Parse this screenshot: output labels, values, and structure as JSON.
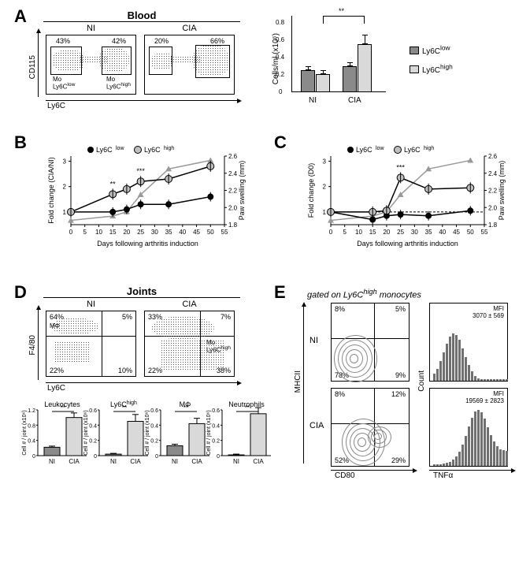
{
  "panelA": {
    "label": "A",
    "title": "Blood",
    "plots": [
      {
        "cond": "NI",
        "left_pct": "43%",
        "right_pct": "42%",
        "left_label": "Mo\nLy6Clow",
        "right_label": "Mo\nLy6Chigh"
      },
      {
        "cond": "CIA",
        "left_pct": "20%",
        "right_pct": "66%"
      }
    ],
    "y_axis": "CD115",
    "x_axis": "Ly6C",
    "bar_chart": {
      "y_label": "Cells/ml (x10⁶)",
      "y_ticks": [
        "0",
        "0.2",
        "0.4",
        "0.6",
        "0.8"
      ],
      "ylim": [
        0,
        0.8
      ],
      "sig": "**",
      "groups": [
        "NI",
        "CIA"
      ],
      "series": [
        {
          "name": "Ly6Clow",
          "color": "#8a8a8a",
          "values": [
            0.24,
            0.28
          ],
          "err": [
            0.04,
            0.04
          ]
        },
        {
          "name": "Ly6Chigh",
          "color": "#d9d9d9",
          "values": [
            0.2,
            0.52
          ],
          "err": [
            0.04,
            0.1
          ]
        }
      ],
      "legend_colors": {
        "low": "#8a8a8a",
        "high": "#d9d9d9"
      }
    }
  },
  "panelB": {
    "label": "B",
    "legend": {
      "low": "Ly6Clow",
      "high": "Ly6Chigh"
    },
    "y1_label": "Fold change (CIA/NI)",
    "y2_label": "Paw swelling (mm)",
    "x_label": "Days following arthritis induction",
    "x_ticks": [
      "0",
      "5",
      "10",
      "15",
      "20",
      "25",
      "30",
      "35",
      "40",
      "45",
      "50",
      "55"
    ],
    "y1_ticks": [
      "1",
      "2",
      "3"
    ],
    "y2_ticks": [
      "1.8",
      "2.0",
      "2.2",
      "2.4",
      "2.6"
    ],
    "sig_marks": [
      {
        "day": 15,
        "mark": "**"
      },
      {
        "day": 25,
        "mark": "***"
      }
    ],
    "series": {
      "low": {
        "color": "#000",
        "fill": "#000",
        "days": [
          0,
          15,
          20,
          25,
          35,
          50
        ],
        "vals": [
          1.0,
          1.0,
          1.1,
          1.3,
          1.3,
          1.6
        ]
      },
      "high": {
        "color": "#000",
        "fill": "#bfbfbf",
        "days": [
          0,
          15,
          20,
          25,
          35,
          50
        ],
        "vals": [
          1.0,
          1.7,
          1.9,
          2.2,
          2.3,
          2.8
        ]
      },
      "paw": {
        "color": "#999",
        "fill": "#999",
        "marker": "triangle",
        "days": [
          0,
          15,
          20,
          25,
          35,
          50
        ],
        "vals": [
          1.85,
          1.9,
          1.95,
          2.15,
          2.45,
          2.55
        ]
      }
    }
  },
  "panelC": {
    "label": "C",
    "legend": {
      "low": "Ly6Clow",
      "high": "Ly6Chigh"
    },
    "y1_label": "Fold change (D0)",
    "y2_label": "Paw swelling (mm)",
    "x_label": "Days following arthritis induction",
    "x_ticks": [
      "0",
      "5",
      "10",
      "15",
      "20",
      "25",
      "30",
      "35",
      "40",
      "45",
      "50",
      "55"
    ],
    "y1_ticks": [
      "1",
      "2",
      "3"
    ],
    "y2_ticks": [
      "1.8",
      "2.0",
      "2.2",
      "2.4",
      "2.6"
    ],
    "sig_marks": [
      {
        "day": 25,
        "mark": "***"
      }
    ],
    "dashed_line_y": 1.0,
    "series": {
      "low": {
        "color": "#000",
        "fill": "#000",
        "days": [
          0,
          15,
          20,
          25,
          35,
          50
        ],
        "vals": [
          1.0,
          0.7,
          0.85,
          0.9,
          0.85,
          1.05
        ]
      },
      "high": {
        "color": "#000",
        "fill": "#bfbfbf",
        "days": [
          0,
          15,
          20,
          25,
          35,
          50
        ],
        "vals": [
          1.0,
          1.0,
          1.05,
          2.35,
          1.9,
          1.95
        ]
      },
      "paw": {
        "color": "#999",
        "fill": "#999",
        "marker": "triangle",
        "days": [
          0,
          15,
          20,
          25,
          35,
          50
        ],
        "vals": [
          1.85,
          1.9,
          1.95,
          2.15,
          2.45,
          2.55
        ]
      }
    }
  },
  "panelD": {
    "label": "D",
    "title": "Joints",
    "y_axis": "F4/80",
    "x_axis": "Ly6C",
    "plots": [
      {
        "cond": "NI",
        "q": [
          "64%",
          "5%",
          "22%",
          "10%"
        ],
        "mphi": "MΦ",
        "mo": ""
      },
      {
        "cond": "CIA",
        "q": [
          "33%",
          "7%",
          "22%",
          "38%"
        ],
        "mo": "Mo\nLy6Chigh"
      }
    ],
    "bars": [
      {
        "title": "Leukocytes",
        "ylabel": "Cell # / joint (x10⁶)",
        "yticks": [
          "0",
          "0.4",
          "0.8",
          "1.2"
        ],
        "ylim": [
          0,
          1.2
        ],
        "groups": [
          "NI",
          "CIA"
        ],
        "vals": [
          0.22,
          1.0
        ],
        "err": [
          0.03,
          0.12
        ],
        "sig": "**",
        "colors": [
          "#8a8a8a",
          "#d9d9d9"
        ]
      },
      {
        "title": "Ly6Chigh",
        "ylabel": "Cell # / joint (x10⁶)",
        "yticks": [
          "0",
          "0.2",
          "0.4",
          "0.6"
        ],
        "ylim": [
          0,
          0.6
        ],
        "groups": [
          "NI",
          "CIA"
        ],
        "vals": [
          0.02,
          0.45
        ],
        "err": [
          0.01,
          0.09
        ],
        "sig": "**",
        "colors": [
          "#8a8a8a",
          "#d9d9d9"
        ]
      },
      {
        "title": "MΦ",
        "ylabel": "Cell # / joint (x10⁶)",
        "yticks": [
          "0",
          "0.2",
          "0.4",
          "0.6"
        ],
        "ylim": [
          0,
          0.6
        ],
        "groups": [
          "NI",
          "CIA"
        ],
        "vals": [
          0.13,
          0.42
        ],
        "err": [
          0.02,
          0.07
        ],
        "sig": "**",
        "colors": [
          "#8a8a8a",
          "#d9d9d9"
        ]
      },
      {
        "title": "Neutrophils",
        "ylabel": "Cell # / joint (x10⁶)",
        "yticks": [
          "0",
          "0.2",
          "0.4",
          "0.6"
        ],
        "ylim": [
          0,
          0.6
        ],
        "groups": [
          "NI",
          "CIA"
        ],
        "vals": [
          0.01,
          0.55
        ],
        "err": [
          0.01,
          0.08
        ],
        "sig": "**",
        "colors": [
          "#8a8a8a",
          "#d9d9d9"
        ]
      }
    ]
  },
  "panelE": {
    "label": "E",
    "title": "gated on Ly6Chigh monocytes",
    "y_axis": "MHCII",
    "x_axis_left": "CD80",
    "x_axis_right": "TNFα",
    "rows": [
      {
        "cond": "NI",
        "q": [
          "8%",
          "5%",
          "78%",
          "9%"
        ],
        "mfi": "MFI\n3070 ± 569"
      },
      {
        "cond": "CIA",
        "q": [
          "8%",
          "12%",
          "52%",
          "29%"
        ],
        "mfi": "MFI\n19569 ± 2823"
      }
    ],
    "hist_y": "Count"
  }
}
